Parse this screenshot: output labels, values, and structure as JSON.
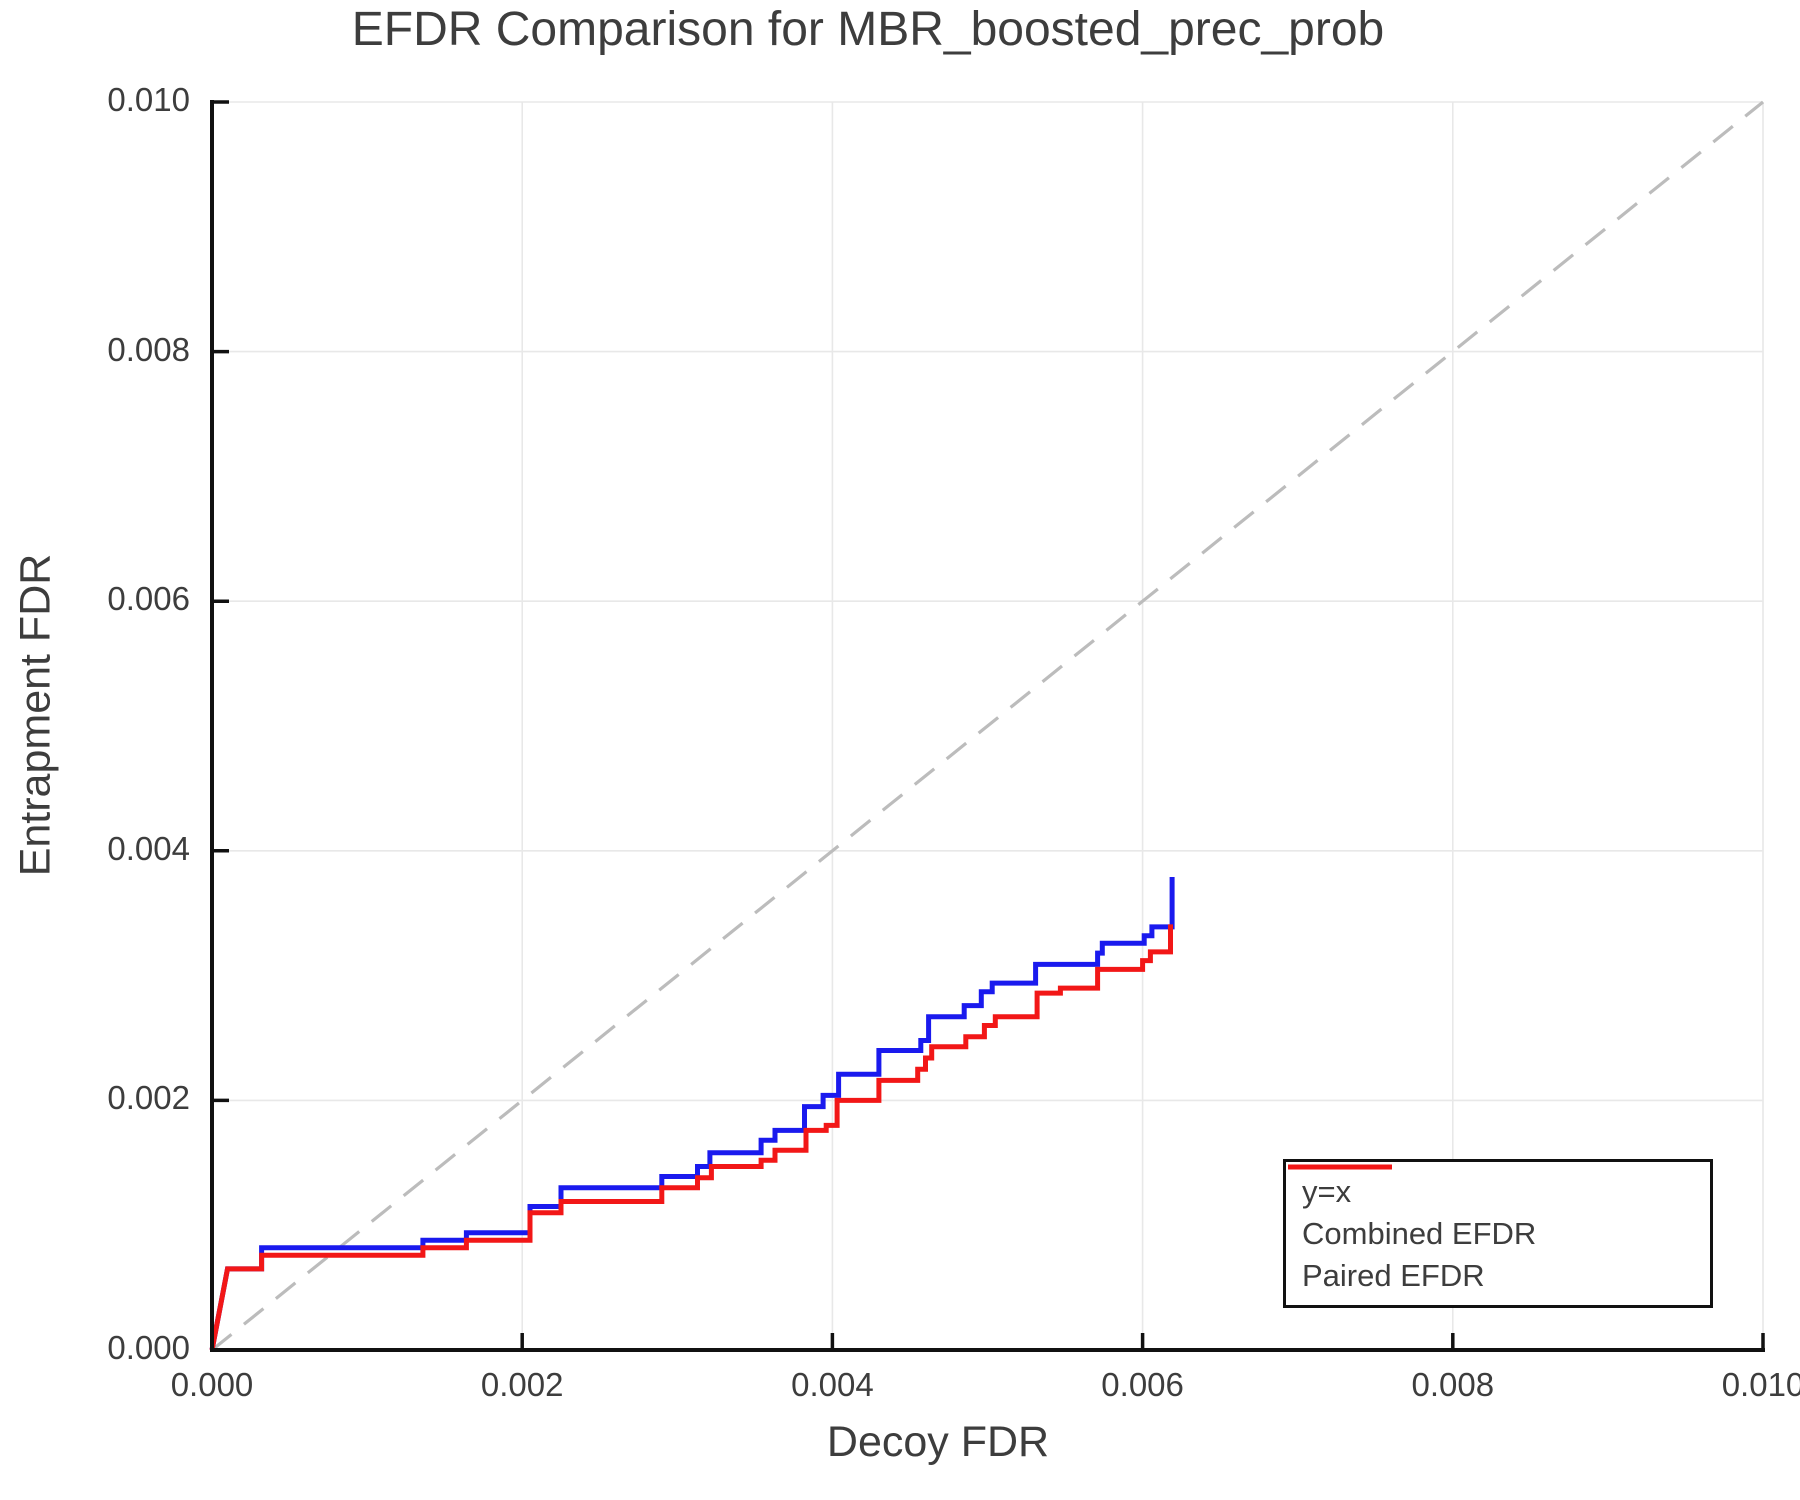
{
  "figure": {
    "title": "EFDR Comparison for MBR_boosted_prec_prob",
    "xlabel": "Decoy FDR",
    "ylabel": "Entrapment FDR"
  },
  "legend": {
    "position": "lower right",
    "items": [
      {
        "label": "y=x",
        "style": "dashed",
        "color": "#bcbcbc"
      },
      {
        "label": "Combined EFDR",
        "style": "solid",
        "color": "#1a1aee"
      },
      {
        "label": "Paired EFDR",
        "style": "solid",
        "color": "#f21717"
      }
    ]
  },
  "chart_data": {
    "type": "line",
    "title": "EFDR Comparison for MBR_boosted_prec_prob",
    "xlabel": "Decoy FDR",
    "ylabel": "Entrapment FDR",
    "xlim": [
      0.0,
      0.01
    ],
    "ylim": [
      0.0,
      0.01
    ],
    "grid": true,
    "grid_color": "#e8e8e8",
    "spine_color": "#111111",
    "text_color": "#3d3d3d",
    "xticks": {
      "values": [
        0.0,
        0.002,
        0.004,
        0.006,
        0.008,
        0.01
      ],
      "labels": [
        "0.000",
        "0.002",
        "0.004",
        "0.006",
        "0.008",
        "0.010"
      ]
    },
    "yticks": {
      "values": [
        0.0,
        0.002,
        0.004,
        0.006,
        0.008,
        0.01
      ],
      "labels": [
        "0.000",
        "0.002",
        "0.004",
        "0.006",
        "0.008",
        "0.010"
      ]
    },
    "reference_line": {
      "name": "y=x",
      "from": [
        0.0,
        0.0
      ],
      "to": [
        0.01,
        0.01
      ],
      "color": "#bcbcbc",
      "dashed": true
    },
    "series": [
      {
        "name": "Combined EFDR",
        "color": "#1a1aee",
        "points": [
          [
            0.0,
            0.0
          ],
          [
            0.0001,
            0.00065
          ],
          [
            0.00032,
            0.00065
          ],
          [
            0.00032,
            0.00082
          ],
          [
            0.00136,
            0.00082
          ],
          [
            0.00136,
            0.00088
          ],
          [
            0.00164,
            0.00088
          ],
          [
            0.00164,
            0.00094
          ],
          [
            0.00205,
            0.00094
          ],
          [
            0.00205,
            0.00115
          ],
          [
            0.00225,
            0.00115
          ],
          [
            0.00225,
            0.0013
          ],
          [
            0.0029,
            0.0013
          ],
          [
            0.0029,
            0.00139
          ],
          [
            0.00313,
            0.00139
          ],
          [
            0.00313,
            0.00147
          ],
          [
            0.00321,
            0.00147
          ],
          [
            0.00321,
            0.00158
          ],
          [
            0.00354,
            0.00158
          ],
          [
            0.00354,
            0.00168
          ],
          [
            0.00363,
            0.00168
          ],
          [
            0.00363,
            0.00176
          ],
          [
            0.00382,
            0.00176
          ],
          [
            0.00382,
            0.00195
          ],
          [
            0.00394,
            0.00195
          ],
          [
            0.00394,
            0.00204
          ],
          [
            0.00404,
            0.00204
          ],
          [
            0.00404,
            0.00221
          ],
          [
            0.0043,
            0.00221
          ],
          [
            0.0043,
            0.0024
          ],
          [
            0.00457,
            0.0024
          ],
          [
            0.00457,
            0.00248
          ],
          [
            0.00462,
            0.00248
          ],
          [
            0.00462,
            0.00267
          ],
          [
            0.00485,
            0.00267
          ],
          [
            0.00485,
            0.00276
          ],
          [
            0.00496,
            0.00276
          ],
          [
            0.00496,
            0.00287
          ],
          [
            0.00503,
            0.00287
          ],
          [
            0.00503,
            0.00294
          ],
          [
            0.00531,
            0.00294
          ],
          [
            0.00531,
            0.00309
          ],
          [
            0.00571,
            0.00309
          ],
          [
            0.00571,
            0.00318
          ],
          [
            0.00574,
            0.00318
          ],
          [
            0.00574,
            0.00326
          ],
          [
            0.00601,
            0.00326
          ],
          [
            0.00601,
            0.00332
          ],
          [
            0.00606,
            0.00332
          ],
          [
            0.00606,
            0.00339
          ],
          [
            0.00619,
            0.00339
          ],
          [
            0.00619,
            0.00379
          ]
        ]
      },
      {
        "name": "Paired EFDR",
        "color": "#f21717",
        "points": [
          [
            0.0,
            0.0
          ],
          [
            0.0001,
            0.00065
          ],
          [
            0.00032,
            0.00065
          ],
          [
            0.00032,
            0.00076
          ],
          [
            0.00136,
            0.00076
          ],
          [
            0.00136,
            0.00082
          ],
          [
            0.00164,
            0.00082
          ],
          [
            0.00164,
            0.00088
          ],
          [
            0.00205,
            0.00088
          ],
          [
            0.00205,
            0.0011
          ],
          [
            0.00225,
            0.0011
          ],
          [
            0.00225,
            0.00119
          ],
          [
            0.0029,
            0.00119
          ],
          [
            0.0029,
            0.0013
          ],
          [
            0.00313,
            0.0013
          ],
          [
            0.00313,
            0.00138
          ],
          [
            0.00322,
            0.00138
          ],
          [
            0.00322,
            0.00147
          ],
          [
            0.00354,
            0.00147
          ],
          [
            0.00354,
            0.00152
          ],
          [
            0.00363,
            0.00152
          ],
          [
            0.00363,
            0.0016
          ],
          [
            0.00383,
            0.0016
          ],
          [
            0.00383,
            0.00176
          ],
          [
            0.00396,
            0.00176
          ],
          [
            0.00396,
            0.0018
          ],
          [
            0.00403,
            0.0018
          ],
          [
            0.00403,
            0.002
          ],
          [
            0.0043,
            0.002
          ],
          [
            0.0043,
            0.00216
          ],
          [
            0.00455,
            0.00216
          ],
          [
            0.00455,
            0.00225
          ],
          [
            0.0046,
            0.00225
          ],
          [
            0.0046,
            0.00234
          ],
          [
            0.00464,
            0.00234
          ],
          [
            0.00464,
            0.00243
          ],
          [
            0.00486,
            0.00243
          ],
          [
            0.00486,
            0.00251
          ],
          [
            0.00498,
            0.00251
          ],
          [
            0.00498,
            0.0026
          ],
          [
            0.00505,
            0.0026
          ],
          [
            0.00505,
            0.00267
          ],
          [
            0.00532,
            0.00267
          ],
          [
            0.00532,
            0.00286
          ],
          [
            0.00547,
            0.00286
          ],
          [
            0.00547,
            0.0029
          ],
          [
            0.00571,
            0.0029
          ],
          [
            0.00571,
            0.00305
          ],
          [
            0.006,
            0.00305
          ],
          [
            0.006,
            0.00312
          ],
          [
            0.00605,
            0.00312
          ],
          [
            0.00605,
            0.00319
          ],
          [
            0.00618,
            0.00319
          ],
          [
            0.00618,
            0.00341
          ]
        ]
      }
    ]
  }
}
